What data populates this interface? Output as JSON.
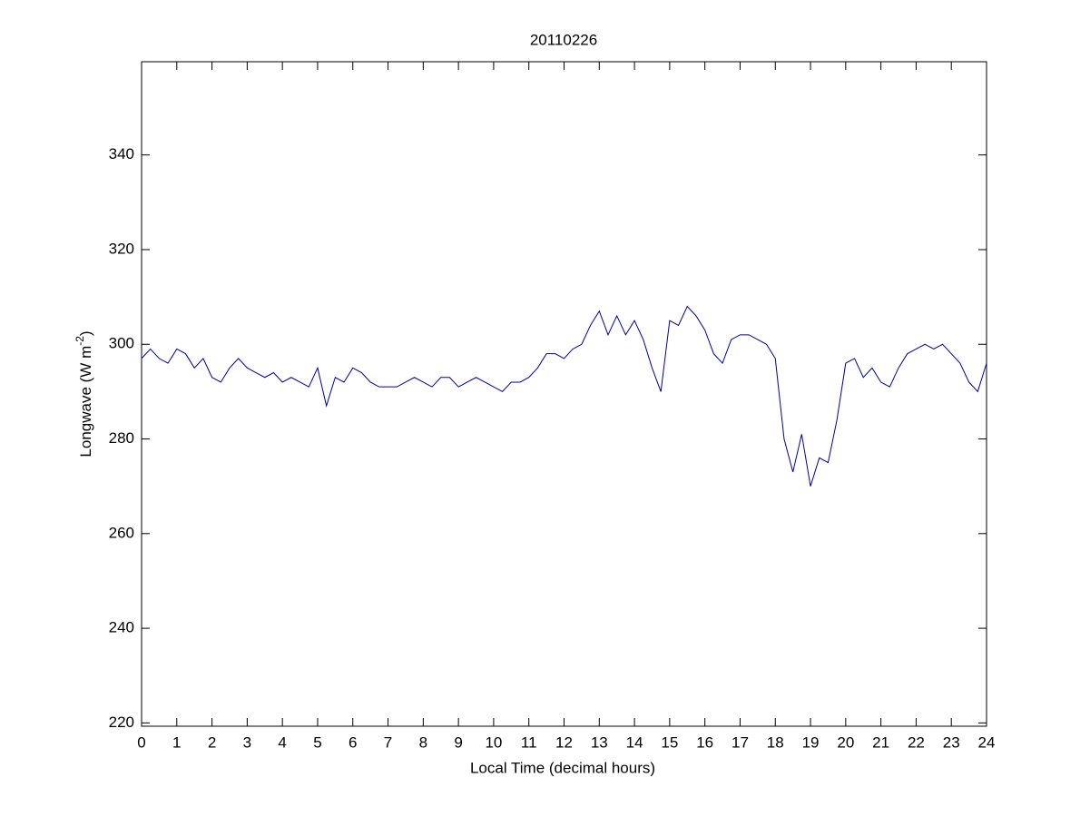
{
  "chart_data": {
    "type": "line",
    "title": "20110226",
    "xlabel": "Local Time (decimal hours)",
    "ylabel": {
      "text": "Longwave (W m",
      "superscript": "-2",
      "suffix": ")"
    },
    "xlim": [
      0,
      24
    ],
    "ylim": [
      219.3,
      359.7
    ],
    "xticks": [
      0,
      1,
      2,
      3,
      4,
      5,
      6,
      7,
      8,
      9,
      10,
      11,
      12,
      13,
      14,
      15,
      16,
      17,
      18,
      19,
      20,
      21,
      22,
      23,
      24
    ],
    "yticks": [
      220,
      240,
      260,
      280,
      300,
      320,
      340
    ],
    "grid": false,
    "series": [
      {
        "color": "#0000a0",
        "x": [
          0,
          0.25,
          0.5,
          0.75,
          1,
          1.25,
          1.5,
          1.75,
          2,
          2.25,
          2.5,
          2.75,
          3,
          3.25,
          3.5,
          3.75,
          4,
          4.25,
          4.5,
          4.75,
          5,
          5.25,
          5.5,
          5.75,
          6,
          6.25,
          6.5,
          6.75,
          7,
          7.25,
          7.5,
          7.75,
          8,
          8.25,
          8.5,
          8.75,
          9,
          9.25,
          9.5,
          9.75,
          10,
          10.25,
          10.5,
          10.75,
          11,
          11.25,
          11.5,
          11.75,
          12,
          12.25,
          12.5,
          12.75,
          13,
          13.25,
          13.5,
          13.75,
          14,
          14.25,
          14.5,
          14.75,
          15,
          15.25,
          15.5,
          15.75,
          16,
          16.25,
          16.5,
          16.75,
          17,
          17.25,
          17.5,
          17.75,
          18,
          18.25,
          18.5,
          18.75,
          19,
          19.25,
          19.5,
          19.75,
          20,
          20.25,
          20.5,
          20.75,
          21,
          21.25,
          21.5,
          21.75,
          22,
          22.25,
          22.5,
          22.75,
          23,
          23.25,
          23.5,
          23.75,
          24
        ],
        "values": [
          297,
          299,
          297,
          296,
          299,
          298,
          295,
          297,
          293,
          292,
          295,
          297,
          295,
          294,
          293,
          294,
          292,
          293,
          292,
          291,
          295,
          287,
          293,
          292,
          295,
          294,
          292,
          291,
          291,
          291,
          292,
          293,
          292,
          291,
          293,
          293,
          291,
          292,
          293,
          292,
          291,
          290,
          292,
          292,
          293,
          295,
          298,
          298,
          297,
          299,
          300,
          304,
          307,
          302,
          306,
          302,
          305,
          301,
          295,
          290,
          305,
          304,
          308,
          306,
          303,
          298,
          296,
          301,
          302,
          302,
          301,
          300,
          297,
          280,
          273,
          281,
          270,
          276,
          275,
          284,
          296,
          297,
          293,
          295,
          292,
          291,
          295,
          298,
          299,
          300,
          299,
          300,
          298,
          296,
          292,
          290,
          296
        ]
      }
    ]
  }
}
